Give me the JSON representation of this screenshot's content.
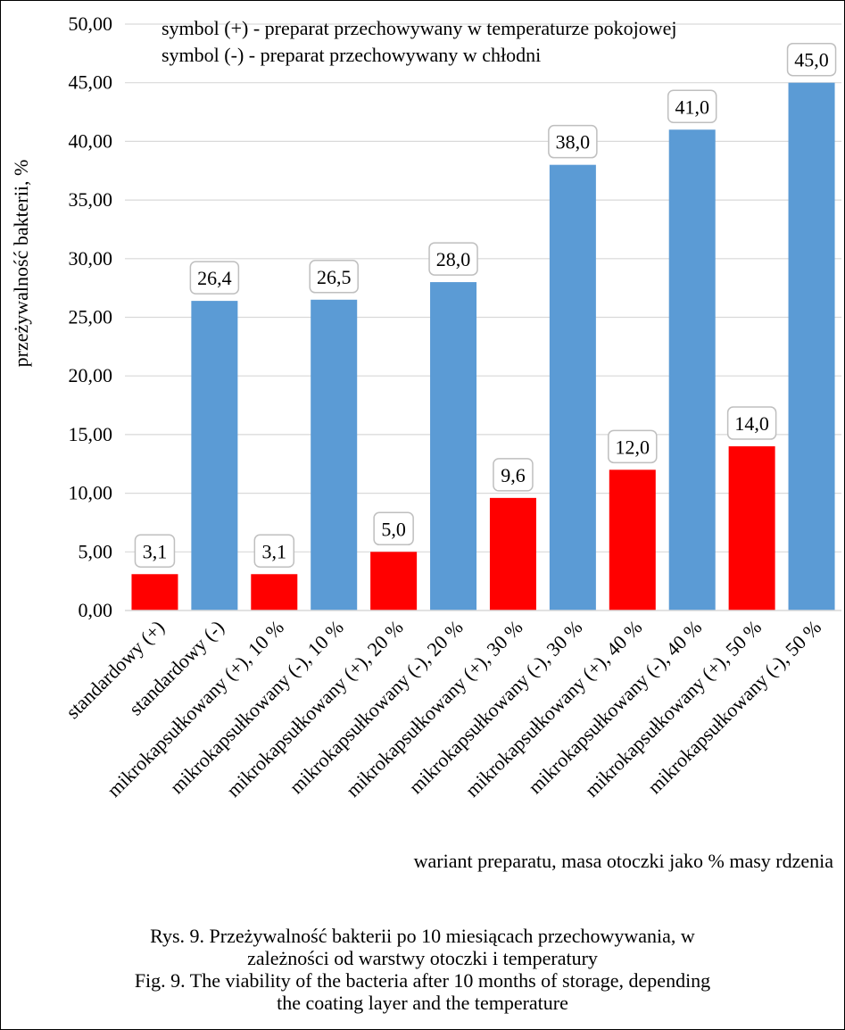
{
  "chart_data": {
    "type": "bar",
    "title": "",
    "ylabel": "przeżywalność bakterii,  %",
    "xlabel": "wariant preparatu, masa otoczki jako % masy rdzenia",
    "ylim": [
      0,
      50
    ],
    "yticks": [
      "0,00",
      "5,00",
      "10,00",
      "15,00",
      "20,00",
      "25,00",
      "30,00",
      "35,00",
      "40,00",
      "45,00",
      "50,00"
    ],
    "grid": true,
    "categories": [
      "standardowy (+)",
      "standardowy (-)",
      "mikrokapsułkowany (+), 10 %",
      "mikrokapsułkowany (-), 10 %",
      "mikrokapsułkowany (+), 20 %",
      "mikrokapsułkowany (-), 20 %",
      "mikrokapsułkowany (+), 30 %",
      "mikrokapsułkowany (-), 30 %",
      "mikrokapsułkowany (+), 40 %",
      "mikrokapsułkowany (-), 40 %",
      "mikrokapsułkowany (+), 50 %",
      "mikrokapsułkowany (-), 50 %"
    ],
    "values": [
      3.1,
      26.4,
      3.1,
      26.5,
      5.0,
      28.0,
      9.6,
      38.0,
      12.0,
      41.0,
      14.0,
      45.0
    ],
    "data_labels": [
      "3,1",
      "26,4",
      "3,1",
      "26,5",
      "5,0",
      "28,0",
      "9,6",
      "38,0",
      "12,0",
      "41,0",
      "14,0",
      "45,0"
    ],
    "bar_colors": [
      "#ff0000",
      "#5b9bd5",
      "#ff0000",
      "#5b9bd5",
      "#ff0000",
      "#5b9bd5",
      "#ff0000",
      "#5b9bd5",
      "#ff0000",
      "#5b9bd5",
      "#ff0000",
      "#5b9bd5"
    ],
    "annotations": [
      "symbol (+) - preparat przechowywany w temperaturze pokojowej",
      "symbol (-) - preparat przechowywany w chłodni"
    ]
  },
  "caption": {
    "line1": "Rys. 9. Przeżywalność bakterii po 10 miesiącach przechowywania, w",
    "line2": "zależności od warstwy otoczki i temperatury",
    "line3": "Fig. 9. The viability of the bacteria after 10 months of storage, depending",
    "line4": "the coating layer and the temperature"
  },
  "colors": {
    "red": "#ff0000",
    "blue": "#5b9bd5",
    "grid": "#d9d9d9",
    "label_border": "#bfbfbf"
  }
}
